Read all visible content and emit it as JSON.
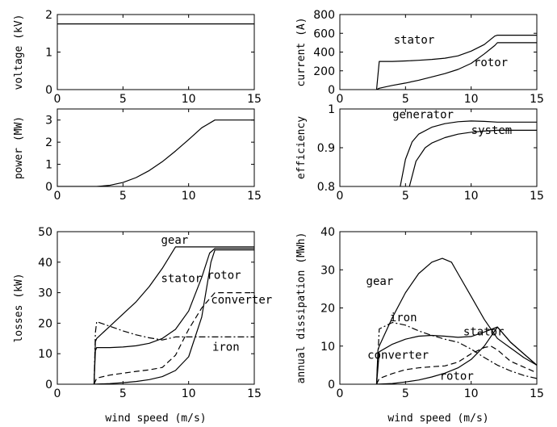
{
  "chart_data": [
    {
      "type": "line",
      "ylabel": "voltage (kV)",
      "xlabel": "",
      "xlim": [
        0,
        15
      ],
      "ylim": [
        0,
        2
      ],
      "xticks": [
        "0",
        "5",
        "10",
        "15"
      ],
      "yticks": [
        "0",
        "1",
        "2"
      ],
      "series": [
        {
          "style": "solid",
          "x": [
            0,
            15
          ],
          "y": [
            1.75,
            1.75
          ]
        }
      ],
      "annotations": []
    },
    {
      "type": "line",
      "ylabel": "current (A)",
      "xlabel": "",
      "xlim": [
        0,
        15
      ],
      "ylim": [
        0,
        800
      ],
      "xticks": [
        "0",
        "5",
        "10",
        "15"
      ],
      "yticks": [
        "0",
        "200",
        "400",
        "600",
        "800"
      ],
      "series": [
        {
          "name": "stator",
          "style": "solid",
          "x": [
            2.8,
            3,
            4,
            5,
            6,
            7,
            8,
            9,
            10,
            11,
            11.8,
            12,
            13,
            14,
            15
          ],
          "y": [
            0,
            300,
            300,
            305,
            312,
            322,
            335,
            360,
            410,
            480,
            570,
            580,
            580,
            580,
            580
          ]
        },
        {
          "name": "rotor",
          "style": "solid",
          "x": [
            2.8,
            3,
            4,
            5,
            6,
            7,
            8,
            9,
            10,
            11,
            11.8,
            12,
            13,
            14,
            15
          ],
          "y": [
            0,
            15,
            45,
            70,
            100,
            135,
            170,
            215,
            280,
            380,
            470,
            500,
            500,
            500,
            500
          ]
        }
      ],
      "annotations": [
        {
          "text": "stator",
          "x": 4.1,
          "y": 490
        },
        {
          "text": "rotor",
          "x": 10.2,
          "y": 250
        }
      ]
    },
    {
      "type": "line",
      "ylabel": "power (MW)",
      "xlabel": "",
      "xlim": [
        0,
        15
      ],
      "ylim": [
        0,
        3.5
      ],
      "xticks": [
        "0",
        "5",
        "10",
        "15"
      ],
      "yticks": [
        "0",
        "1",
        "2",
        "3"
      ],
      "series": [
        {
          "style": "solid",
          "x": [
            0,
            3,
            4,
            5,
            6,
            7,
            8,
            9,
            10,
            11,
            12,
            13,
            14,
            15
          ],
          "y": [
            0,
            0,
            0.05,
            0.18,
            0.4,
            0.72,
            1.12,
            1.6,
            2.12,
            2.65,
            3.0,
            3.0,
            3.0,
            3.0
          ]
        }
      ],
      "annotations": []
    },
    {
      "type": "line",
      "ylabel": "efficiency",
      "xlabel": "",
      "xlim": [
        0,
        15
      ],
      "ylim": [
        0.8,
        1.0
      ],
      "xticks": [
        "0",
        "5",
        "10",
        "15"
      ],
      "yticks": [
        "0.8",
        "0.9",
        "1"
      ],
      "series": [
        {
          "name": "generator",
          "style": "solid",
          "x": [
            4.6,
            5,
            5.5,
            6,
            7,
            8,
            9,
            10,
            11,
            12,
            13,
            14,
            15
          ],
          "y": [
            0.8,
            0.87,
            0.915,
            0.935,
            0.953,
            0.962,
            0.967,
            0.969,
            0.968,
            0.966,
            0.966,
            0.966,
            0.966
          ]
        },
        {
          "name": "system",
          "style": "solid",
          "x": [
            5.3,
            5.8,
            6.5,
            7,
            8,
            9,
            10,
            11,
            12,
            13,
            14,
            15
          ],
          "y": [
            0.8,
            0.865,
            0.9,
            0.912,
            0.926,
            0.935,
            0.94,
            0.943,
            0.945,
            0.945,
            0.945,
            0.945
          ]
        }
      ],
      "annotations": [
        {
          "text": "generator",
          "x": 4.0,
          "y": 0.976
        },
        {
          "text": "system",
          "x": 10.0,
          "y": 0.935
        }
      ]
    },
    {
      "type": "line",
      "ylabel": "losses (kW)",
      "xlabel": "wind speed (m/s)",
      "xlim": [
        0,
        15
      ],
      "ylim": [
        0,
        50
      ],
      "xticks": [
        "0",
        "5",
        "10",
        "15"
      ],
      "yticks": [
        "0",
        "10",
        "20",
        "30",
        "40",
        "50"
      ],
      "series": [
        {
          "name": "gear",
          "style": "solid",
          "x": [
            2.8,
            2.9,
            3,
            4,
            5,
            6,
            7,
            8,
            9,
            10,
            11,
            12,
            13,
            14,
            15
          ],
          "y": [
            0,
            14,
            15,
            19,
            23,
            27,
            32,
            38,
            45,
            45,
            45,
            45,
            45,
            45,
            45
          ]
        },
        {
          "name": "stator",
          "style": "solid",
          "x": [
            2.8,
            2.9,
            3,
            4,
            5,
            6,
            7,
            8,
            9,
            10,
            11,
            11.6,
            12,
            13,
            14,
            15
          ],
          "y": [
            0,
            11,
            12,
            12,
            12.2,
            12.6,
            13.4,
            15,
            18,
            24,
            35,
            43,
            44.5,
            44.5,
            44.5,
            44.5
          ]
        },
        {
          "name": "rotor",
          "style": "solid",
          "x": [
            2.8,
            4,
            5,
            6,
            7,
            8,
            9,
            10,
            11,
            11.7,
            12,
            13,
            14,
            15
          ],
          "y": [
            0,
            0.2,
            0.5,
            0.9,
            1.5,
            2.5,
            4.5,
            9,
            22,
            40,
            44,
            44,
            44,
            44
          ]
        },
        {
          "name": "converter",
          "style": "dashed",
          "x": [
            2.8,
            3,
            4,
            5,
            6,
            7,
            8,
            9,
            10,
            11,
            12,
            13,
            14,
            15
          ],
          "y": [
            0,
            2,
            3,
            3.6,
            4.2,
            4.7,
            5.5,
            9.5,
            18,
            25,
            30,
            30,
            30,
            30
          ]
        },
        {
          "name": "iron",
          "style": "dashdot",
          "x": [
            2.8,
            2.9,
            3,
            4,
            5,
            6,
            7,
            8,
            9,
            10,
            11,
            12,
            13,
            14,
            15
          ],
          "y": [
            0,
            17,
            20.5,
            19,
            17.5,
            16.2,
            15.2,
            14.5,
            15.5,
            15.5,
            15.5,
            15.5,
            15.5,
            15.5,
            15.5
          ]
        }
      ],
      "annotations": [
        {
          "text": "gear",
          "x": 7.9,
          "y": 46
        },
        {
          "text": "stator",
          "x": 7.9,
          "y": 33.5
        },
        {
          "text": "rotor",
          "x": 11.4,
          "y": 34.5
        },
        {
          "text": "converter",
          "x": 11.7,
          "y": 26.5
        },
        {
          "text": "iron",
          "x": 11.8,
          "y": 11
        }
      ]
    },
    {
      "type": "line",
      "ylabel": "annual dissipation (MWh)",
      "xlabel": "wind speed (m/s)",
      "xlim": [
        0,
        15
      ],
      "ylim": [
        0,
        40
      ],
      "xticks": [
        "0",
        "5",
        "10",
        "15"
      ],
      "yticks": [
        "0",
        "10",
        "20",
        "30",
        "40"
      ],
      "series": [
        {
          "name": "gear",
          "style": "solid",
          "x": [
            2.8,
            2.9,
            3,
            4,
            5,
            6,
            7,
            7.8,
            8.5,
            9,
            10,
            11,
            12,
            13,
            14,
            15
          ],
          "y": [
            0,
            9,
            10,
            17.5,
            24,
            29,
            32,
            33,
            32,
            29,
            23,
            17,
            12,
            9.5,
            7,
            5
          ]
        },
        {
          "name": "stator",
          "style": "solid",
          "x": [
            2.8,
            3,
            4,
            5,
            6,
            7,
            8,
            9,
            10,
            11,
            12,
            13,
            14,
            15
          ],
          "y": [
            0,
            8.5,
            10.5,
            11.8,
            12.6,
            12.8,
            12.6,
            12.3,
            12.5,
            13.7,
            15,
            11,
            8,
            5
          ]
        },
        {
          "name": "converter",
          "style": "dashed",
          "x": [
            2.8,
            3,
            4,
            5,
            6,
            7,
            8,
            9,
            10,
            11,
            11.5,
            12,
            13,
            14,
            15
          ],
          "y": [
            0,
            1.5,
            2.8,
            3.8,
            4.3,
            4.6,
            4.8,
            5.8,
            8,
            9.6,
            10,
            9,
            6,
            4.5,
            3
          ]
        },
        {
          "name": "iron",
          "style": "dashdot",
          "x": [
            2.8,
            3,
            4,
            5,
            6,
            7,
            8,
            9,
            10,
            11,
            12,
            13,
            14,
            15
          ],
          "y": [
            0,
            14.5,
            16.2,
            15.5,
            14,
            12.8,
            11.8,
            11,
            9.2,
            7,
            5,
            3.5,
            2.3,
            1.5
          ]
        },
        {
          "name": "rotor",
          "style": "solid",
          "x": [
            2.8,
            4,
            5,
            6,
            7,
            8,
            9,
            10,
            11,
            12,
            13,
            14,
            15
          ],
          "y": [
            0,
            0.2,
            0.6,
            1.1,
            1.9,
            2.9,
            4.3,
            6.5,
            10,
            15,
            11,
            8,
            5
          ]
        }
      ],
      "annotations": [
        {
          "text": "gear",
          "x": 2.0,
          "y": 26
        },
        {
          "text": "iron",
          "x": 3.8,
          "y": 16.5
        },
        {
          "text": "stator",
          "x": 9.4,
          "y": 12.8
        },
        {
          "text": "converter",
          "x": 2.1,
          "y": 6.7
        },
        {
          "text": "rotor",
          "x": 7.6,
          "y": 1.2
        }
      ]
    }
  ]
}
